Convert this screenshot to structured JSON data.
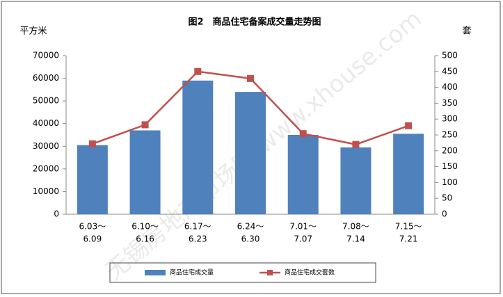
{
  "chart_data": {
    "type": "bar_line",
    "title": "图2　商品住宅备案成交量走势图",
    "y_label": "平方米",
    "y2_label": "套",
    "watermark": "无锡房地产市场网 www.xhouse.com",
    "categories": [
      [
        "6.03～",
        "6.09"
      ],
      [
        "6.10～",
        "6.16"
      ],
      [
        "6.17～",
        "6.23"
      ],
      [
        "6.24～",
        "6.30"
      ],
      [
        "7.01～",
        "7.07"
      ],
      [
        "7.08～",
        "7.14"
      ],
      [
        "7.15～",
        "7.21"
      ]
    ],
    "series": [
      {
        "name": "商品住宅成交量",
        "type": "bar",
        "color": "#4f81bd",
        "values": [
          30500,
          37000,
          59000,
          54000,
          35000,
          29500,
          35500
        ]
      },
      {
        "name": "商品住宅成交套数",
        "type": "line",
        "axis": "y2",
        "color": "#c0504d",
        "values": [
          222,
          282,
          450,
          428,
          254,
          220,
          279
        ]
      }
    ],
    "ylim": [
      0,
      70000
    ],
    "yticks": [
      0,
      10000,
      20000,
      30000,
      40000,
      50000,
      60000,
      70000
    ],
    "y2lim": [
      0,
      500
    ],
    "y2ticks": [
      0,
      50,
      100,
      150,
      200,
      250,
      300,
      350,
      400,
      450,
      500
    ],
    "legend": "bottom"
  }
}
